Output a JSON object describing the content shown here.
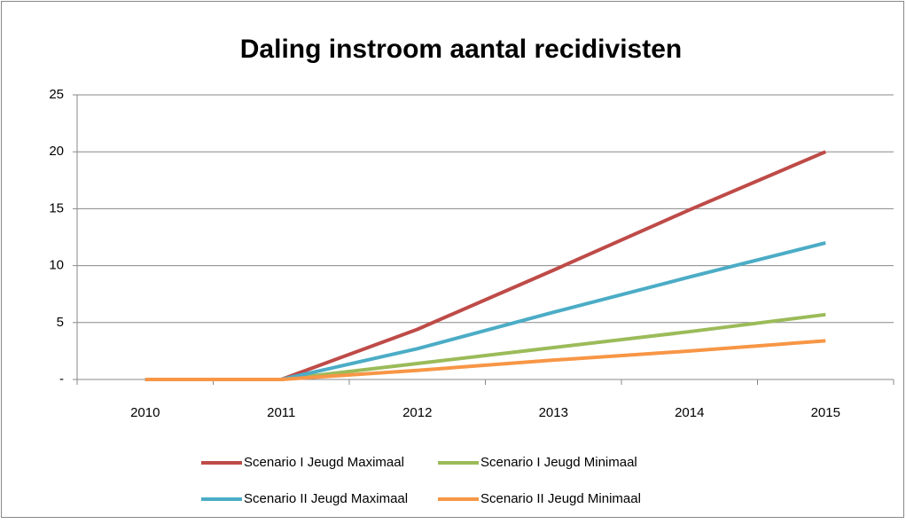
{
  "chart_data": {
    "type": "line",
    "title": "Daling instroom aantal recidivisten",
    "categories": [
      "2010",
      "2011",
      "2012",
      "2013",
      "2014",
      "2015"
    ],
    "series": [
      {
        "name": "Scenario I Jeugd Maximaal",
        "color": "#be4b48",
        "values": [
          0,
          0,
          4.4,
          9.6,
          14.9,
          20
        ]
      },
      {
        "name": "Scenario I Jeugd Minimaal",
        "color": "#9bbb59",
        "values": [
          0,
          0,
          1.4,
          2.8,
          4.2,
          5.7
        ]
      },
      {
        "name": "Scenario II Jeugd Maximaal",
        "color": "#4bacc6",
        "values": [
          0,
          0,
          2.7,
          5.9,
          9.0,
          12
        ]
      },
      {
        "name": "Scenario II Jeugd Minimaal",
        "color": "#f79646",
        "values": [
          0,
          0,
          0.8,
          1.7,
          2.5,
          3.4
        ]
      }
    ],
    "ylim": [
      0,
      25
    ],
    "yticks": [
      {
        "value": 0,
        "label": "-"
      },
      5,
      10,
      15,
      20,
      25
    ],
    "grid": true
  }
}
